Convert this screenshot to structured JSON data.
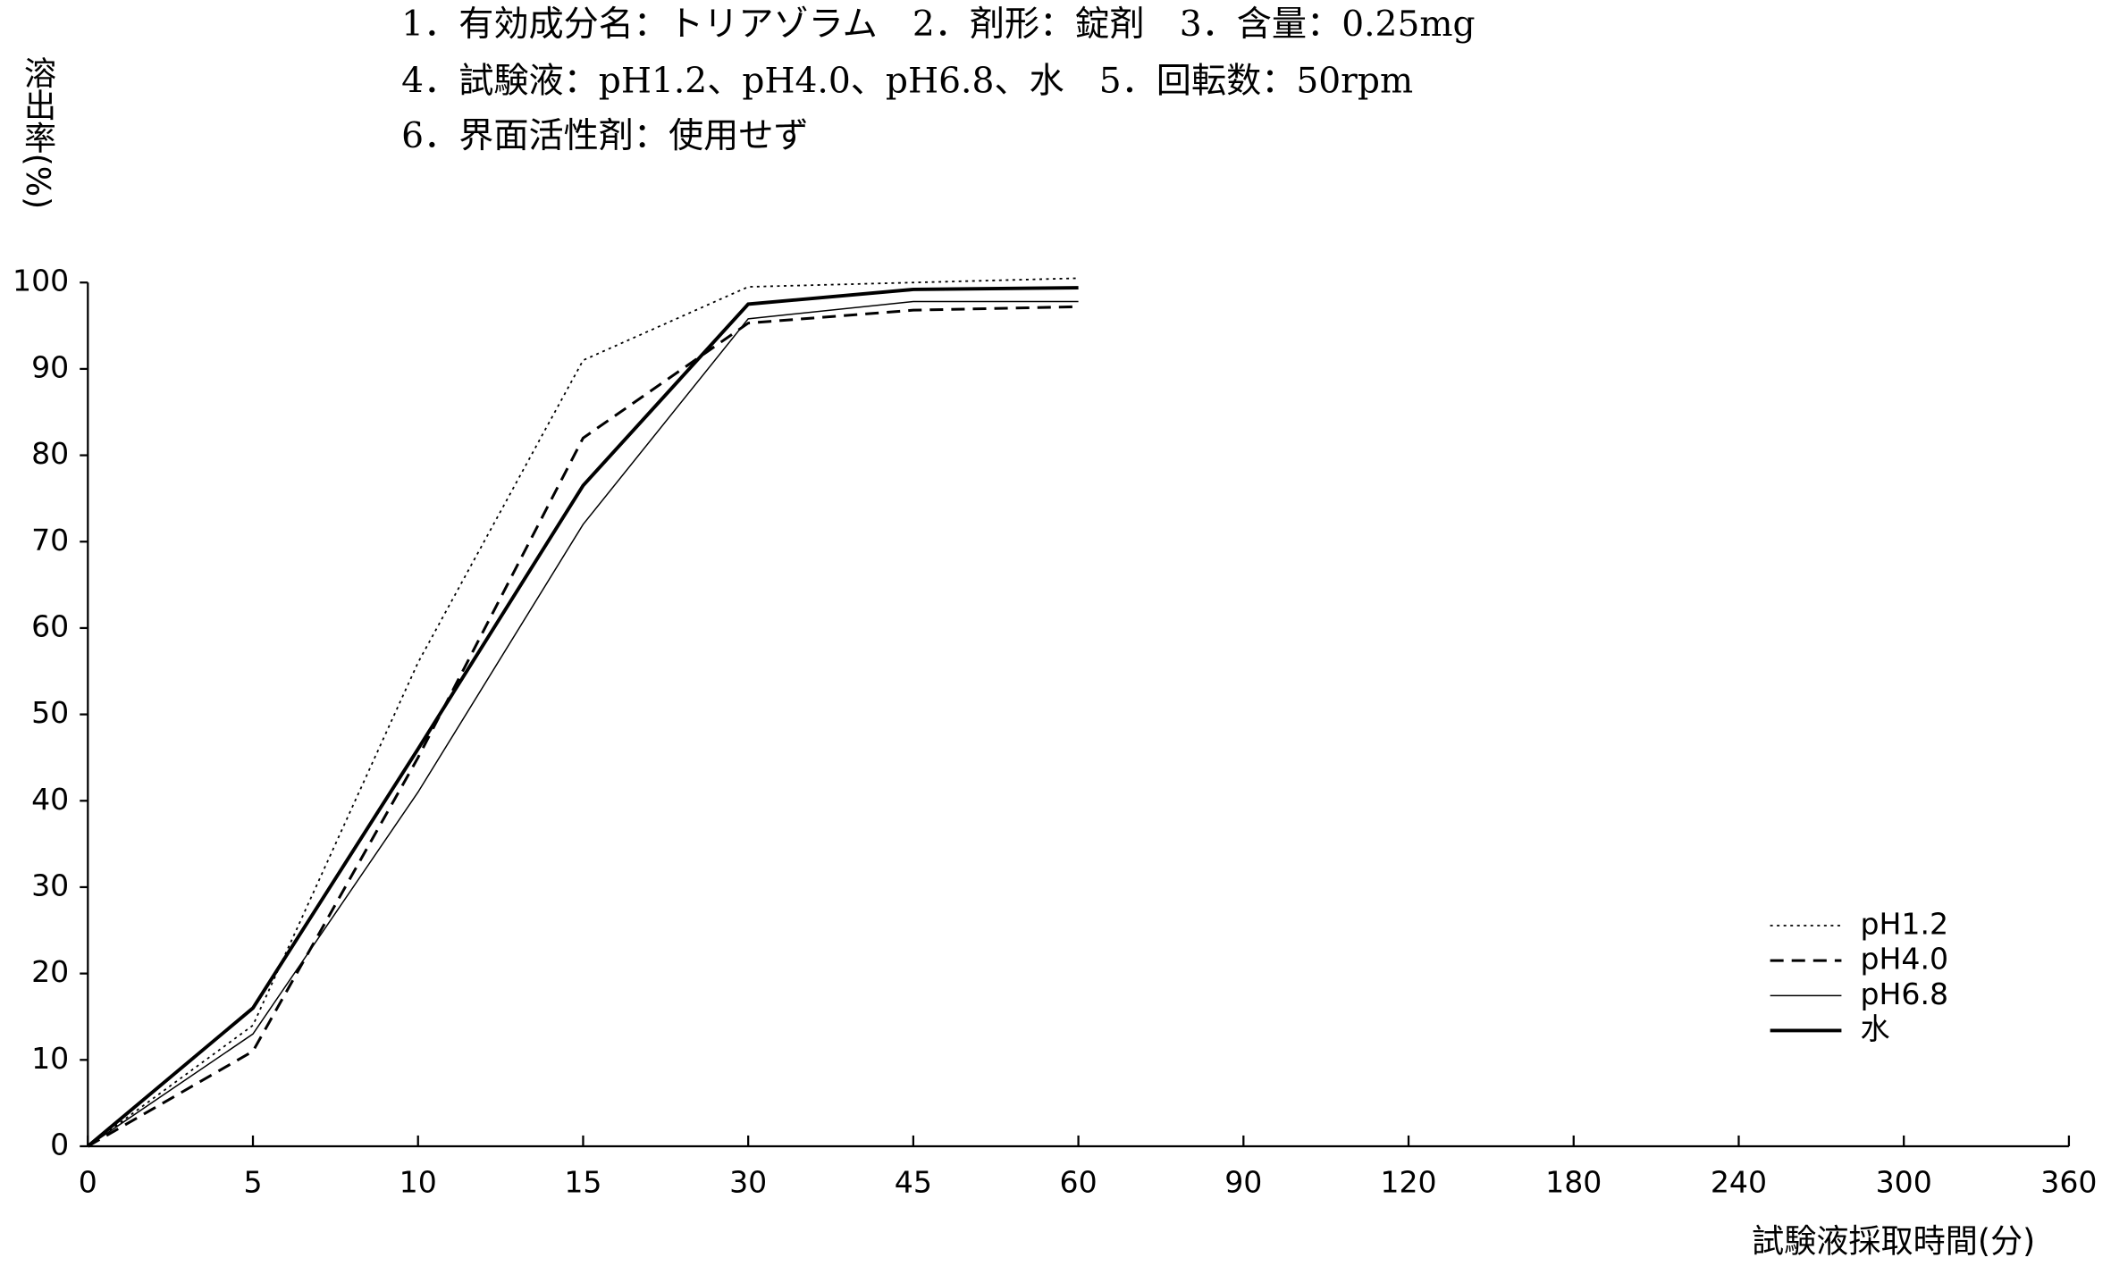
{
  "chart_data": {
    "type": "line",
    "title_lines": [
      "1．有効成分名：トリアゾラム　2．剤形：錠剤　3．含量：0.25mg",
      "4．試験液：pH1.2、pH4.0、pH6.8、水　5．回転数：50rpm",
      "6．界面活性剤：使用せず"
    ],
    "ylabel": "溶出率(%)",
    "xlabel": "試験液採取時間(分)",
    "categories": [
      "0",
      "5",
      "10",
      "15",
      "30",
      "45",
      "60",
      "90",
      "120",
      "180",
      "240",
      "300",
      "360"
    ],
    "ylim": [
      0,
      100
    ],
    "yticks": [
      0,
      10,
      20,
      30,
      40,
      50,
      60,
      70,
      80,
      90,
      100
    ],
    "grid": false,
    "legend": "lower right",
    "series": [
      {
        "name": "pH1.2",
        "color": "#000000",
        "style": "dotted",
        "values": [
          0,
          14,
          56,
          91,
          99.5,
          100,
          100.5,
          null,
          null,
          null,
          null,
          null,
          null
        ]
      },
      {
        "name": "pH4.0",
        "color": "#000000",
        "style": "dashed",
        "values": [
          0,
          11,
          45,
          82,
          95.3,
          96.8,
          97.2,
          null,
          null,
          null,
          null,
          null,
          null
        ]
      },
      {
        "name": "pH6.8",
        "color": "#000000",
        "style": "thin",
        "values": [
          0,
          13,
          41,
          72,
          95.8,
          97.8,
          97.8,
          null,
          null,
          null,
          null,
          null,
          null
        ]
      },
      {
        "name": "水",
        "color": "#000000",
        "style": "thick",
        "values": [
          0,
          16,
          46,
          76.5,
          97.5,
          99.2,
          99.4,
          null,
          null,
          null,
          null,
          null,
          null
        ]
      }
    ]
  }
}
